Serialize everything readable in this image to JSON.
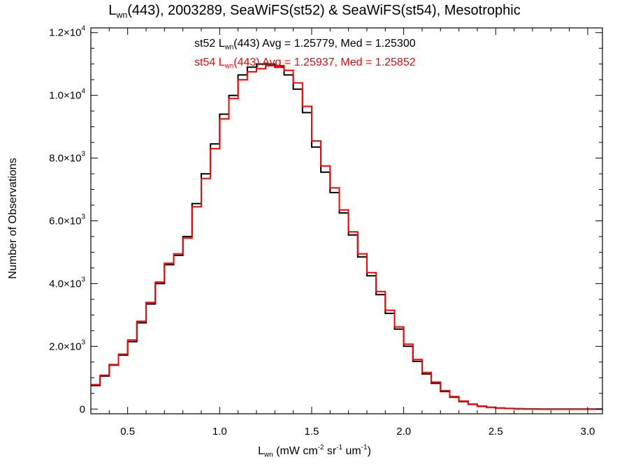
{
  "chart_data": {
    "type": "line",
    "step": true,
    "title": {
      "prefix": "L",
      "sub": "wn",
      "suffix": "(443), 2003289, SeaWiFS(st52) & SeaWiFS(st54), Mesotrophic"
    },
    "xlabel": {
      "prefix": "L",
      "sub": "wn",
      "parts": [
        " (mW cm",
        "-2",
        " sr",
        "-1",
        " um",
        "-1",
        ")"
      ]
    },
    "ylabel": "Number of Observations",
    "xlim": [
      0.3,
      3.08
    ],
    "ylim": [
      -150,
      12150
    ],
    "x_ticks": [
      {
        "value": 0.5,
        "label": "0.5"
      },
      {
        "value": 1.0,
        "label": "1.0"
      },
      {
        "value": 1.5,
        "label": "1.5"
      },
      {
        "value": 2.0,
        "label": "2.0"
      },
      {
        "value": 2.5,
        "label": "2.5"
      },
      {
        "value": 3.0,
        "label": "3.0"
      }
    ],
    "y_ticks": [
      {
        "value": 0,
        "mantissa": "0",
        "exp": ""
      },
      {
        "value": 2000,
        "mantissa": "2.0×10",
        "exp": "3"
      },
      {
        "value": 4000,
        "mantissa": "4.0×10",
        "exp": "3"
      },
      {
        "value": 6000,
        "mantissa": "6.0×10",
        "exp": "3"
      },
      {
        "value": 8000,
        "mantissa": "8.0×10",
        "exp": "3"
      },
      {
        "value": 10000,
        "mantissa": "1.0×10",
        "exp": "4"
      },
      {
        "value": 12000,
        "mantissa": "1.2×10",
        "exp": "4"
      }
    ],
    "annotations": [
      {
        "prefix": "st52 L",
        "sub": "wn",
        "suffix": "(443) Avg = 1.25779, Med = 1.25300",
        "color": "#000000"
      },
      {
        "prefix": "st54 L",
        "sub": "wn",
        "suffix": "(443) Avg = 1.25937, Med = 1.25852",
        "color": "#ff0000"
      }
    ],
    "series": [
      {
        "color": "#000000",
        "x": [
          0.3,
          0.35,
          0.4,
          0.45,
          0.5,
          0.55,
          0.6,
          0.65,
          0.7,
          0.75,
          0.8,
          0.85,
          0.9,
          0.95,
          1.0,
          1.05,
          1.1,
          1.15,
          1.2,
          1.25,
          1.3,
          1.35,
          1.4,
          1.45,
          1.5,
          1.55,
          1.6,
          1.65,
          1.7,
          1.75,
          1.8,
          1.85,
          1.9,
          1.95,
          2.0,
          2.05,
          2.1,
          2.15,
          2.2,
          2.25,
          2.3,
          2.35,
          2.4,
          2.45,
          2.5,
          2.55,
          2.6,
          2.65,
          2.7,
          2.75,
          2.8,
          2.85,
          2.9,
          2.95,
          3.0,
          3.05
        ],
        "values": [
          750,
          1050,
          1400,
          1720,
          2150,
          2750,
          3350,
          4000,
          4600,
          4900,
          5500,
          6550,
          7500,
          8450,
          9400,
          10000,
          10650,
          10900,
          11000,
          11000,
          10900,
          10650,
          10200,
          9450,
          8350,
          7550,
          6900,
          6250,
          5550,
          4850,
          4250,
          3650,
          3050,
          2550,
          2000,
          1520,
          1120,
          820,
          560,
          380,
          240,
          150,
          90,
          55,
          32,
          18,
          10,
          6,
          4,
          2,
          1,
          1,
          0,
          0,
          0,
          0
        ]
      },
      {
        "color": "#ff0000",
        "x": [
          0.3,
          0.35,
          0.4,
          0.45,
          0.5,
          0.55,
          0.6,
          0.65,
          0.7,
          0.75,
          0.8,
          0.85,
          0.9,
          0.95,
          1.0,
          1.05,
          1.1,
          1.15,
          1.2,
          1.25,
          1.3,
          1.35,
          1.4,
          1.45,
          1.5,
          1.55,
          1.6,
          1.65,
          1.7,
          1.75,
          1.8,
          1.85,
          1.9,
          1.95,
          2.0,
          2.05,
          2.1,
          2.15,
          2.2,
          2.25,
          2.3,
          2.35,
          2.4,
          2.45,
          2.5,
          2.55,
          2.6,
          2.65,
          2.7,
          2.75,
          2.8,
          2.85,
          2.9,
          2.95,
          3.0,
          3.05
        ],
        "values": [
          780,
          1080,
          1420,
          1750,
          2200,
          2800,
          3400,
          4050,
          4650,
          4950,
          5450,
          6450,
          7350,
          8300,
          9250,
          9900,
          10500,
          10750,
          10850,
          10950,
          10950,
          10800,
          10400,
          9650,
          8550,
          7750,
          7050,
          6350,
          5650,
          4950,
          4350,
          3750,
          3150,
          2620,
          2070,
          1580,
          1170,
          860,
          590,
          400,
          255,
          160,
          96,
          58,
          34,
          20,
          11,
          7,
          4,
          2,
          1,
          1,
          0,
          0,
          0,
          0
        ]
      }
    ]
  }
}
